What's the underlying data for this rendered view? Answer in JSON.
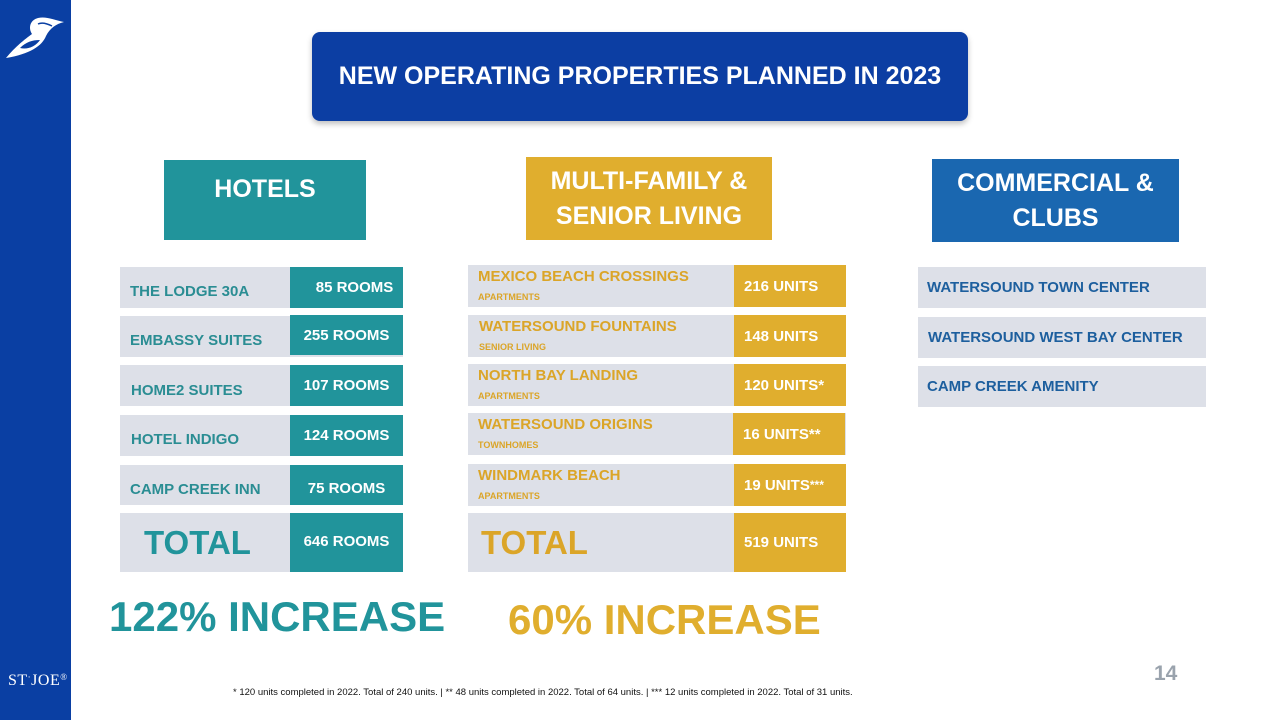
{
  "slide": {
    "title": "NEW OPERATING PROPERTIES PLANNED IN 2023",
    "brand": {
      "name": "ST JOE",
      "st": "ST",
      "joe": "JOE",
      "reg": "®"
    },
    "page_number": "14",
    "footnote": "* 120 units completed in 2022. Total of 240 units.  |  ** 48 units completed in 2022. Total of 64 units.  |  *** 12 units completed in 2022. Total of 31 units."
  },
  "colors": {
    "sidebar": "#0a3fa3",
    "hotels": "#21949b",
    "multifamily": "#e0ae2e",
    "commercial": "#1a67b0",
    "row_bg": "#dde0e8"
  },
  "hotels": {
    "heading": "HOTELS",
    "rows": [
      {
        "name": "THE LODGE 30A",
        "value": "85 ROOMS"
      },
      {
        "name": "EMBASSY SUITES",
        "value": "255 ROOMS"
      },
      {
        "name": "HOME2 SUITES",
        "value": "107 ROOMS"
      },
      {
        "name": "HOTEL INDIGO",
        "value": "124 ROOMS"
      },
      {
        "name": "CAMP CREEK INN",
        "value": "75 ROOMS"
      }
    ],
    "total_label": "TOTAL",
    "total_value": "646 ROOMS",
    "increase": "122% INCREASE"
  },
  "multifamily": {
    "heading_line1": "MULTI-FAMILY &",
    "heading_line2": "SENIOR LIVING",
    "rows": [
      {
        "name": "MEXICO BEACH CROSSINGS",
        "type": "APARTMENTS",
        "value": "216 UNITS",
        "mark": ""
      },
      {
        "name": "WATERSOUND FOUNTAINS",
        "type": "SENIOR  LIVING",
        "value": "148 UNITS",
        "mark": ""
      },
      {
        "name": "NORTH BAY LANDING",
        "type": "APARTMENTS",
        "value": "120 UNITS*",
        "mark": ""
      },
      {
        "name": "WATERSOUND ORIGINS",
        "type": "TOWNHOMES",
        "value": "16 UNITS**",
        "mark": ""
      },
      {
        "name": "WINDMARK BEACH",
        "type": "APARTMENTS",
        "value": "19 UNITS",
        "mark": "***"
      }
    ],
    "total_label": "TOTAL",
    "total_value": "519 UNITS",
    "increase": "60% INCREASE"
  },
  "commercial": {
    "heading_line1": "COMMERCIAL &",
    "heading_line2": "CLUBS",
    "rows": [
      {
        "name": "WATERSOUND TOWN CENTER"
      },
      {
        "name": "WATERSOUND WEST BAY CENTER"
      },
      {
        "name": "CAMP CREEK AMENITY"
      }
    ]
  }
}
